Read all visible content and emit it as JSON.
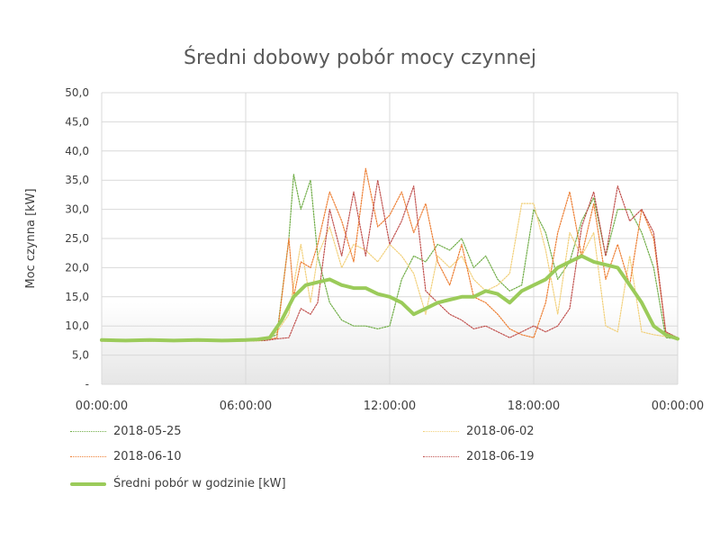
{
  "chart_data": {
    "type": "line",
    "title": "Średni dobowy pobór mocy czynnej",
    "ylabel": "Moc czynna [kW]",
    "ylim": [
      0,
      50
    ],
    "yticks": [
      "-",
      "5,0",
      "10,0",
      "15,0",
      "20,0",
      "25,0",
      "30,0",
      "35,0",
      "40,0",
      "45,0",
      "50,0"
    ],
    "xlim": [
      0,
      24
    ],
    "xticks": [
      "00:00:00",
      "06:00:00",
      "12:00:00",
      "18:00:00",
      "00:00:00"
    ],
    "grid": true,
    "legend_position": "bottom",
    "series": [
      {
        "name": "2018-05-25",
        "color": "#70AD47",
        "style": "dotted",
        "x": [
          0,
          2,
          4,
          6,
          6.8,
          7.3,
          7.8,
          8.0,
          8.3,
          8.7,
          9.0,
          9.5,
          10,
          10.5,
          11,
          11.5,
          12,
          12.5,
          13,
          13.5,
          14,
          14.5,
          15,
          15.5,
          16,
          16.5,
          17,
          17.5,
          18,
          18.5,
          19,
          19.5,
          20,
          20.5,
          21,
          21.5,
          22,
          22.5,
          23,
          23.5,
          24
        ],
        "y": [
          7.6,
          7.6,
          7.6,
          7.6,
          7.7,
          8.5,
          25,
          36,
          30,
          35,
          22,
          14,
          11,
          10,
          10,
          9.5,
          10,
          18,
          22,
          21,
          24,
          23,
          25,
          20,
          22,
          18,
          16,
          17,
          30,
          26,
          18,
          21,
          28,
          32,
          22,
          30,
          30,
          26,
          20,
          8,
          7.8
        ]
      },
      {
        "name": "2018-06-02",
        "color": "#F2D07A",
        "style": "dotted",
        "x": [
          0,
          2,
          4,
          6,
          6.8,
          7.3,
          7.8,
          8.0,
          8.3,
          8.7,
          9.0,
          9.5,
          10,
          10.5,
          11,
          11.5,
          12,
          12.5,
          13,
          13.5,
          14,
          14.5,
          15,
          15.5,
          16,
          16.5,
          17,
          17.5,
          18,
          18.5,
          19,
          19.5,
          20,
          20.5,
          21,
          21.5,
          22,
          22.5,
          23,
          23.5,
          24
        ],
        "y": [
          7.5,
          7.5,
          7.5,
          7.5,
          7.6,
          9,
          12,
          17,
          24,
          14,
          22,
          27,
          20,
          24,
          23,
          21,
          24,
          22,
          19,
          12,
          22,
          20,
          22,
          18,
          16,
          17,
          19,
          31,
          31,
          23,
          12,
          26,
          22,
          26,
          10,
          9,
          22,
          9,
          8.5,
          8.2,
          7.9
        ]
      },
      {
        "name": "2018-06-10",
        "color": "#ED7D31",
        "style": "dotted",
        "x": [
          0,
          2,
          4,
          6,
          6.8,
          7.3,
          7.8,
          8.0,
          8.3,
          8.7,
          9.0,
          9.5,
          10,
          10.5,
          11,
          11.5,
          12,
          12.5,
          13,
          13.5,
          14,
          14.5,
          15,
          15.5,
          16,
          16.5,
          17,
          17.5,
          18,
          18.5,
          19,
          19.5,
          20,
          20.5,
          21,
          21.5,
          22,
          22.5,
          23,
          23.5,
          24
        ],
        "y": [
          7.4,
          7.4,
          7.4,
          7.4,
          7.5,
          8,
          25,
          15,
          21,
          20,
          24,
          33,
          28,
          21,
          37,
          27,
          29,
          33,
          26,
          31,
          21,
          17,
          24,
          15,
          14,
          12,
          9.5,
          8.5,
          8,
          14,
          26,
          33,
          22,
          31,
          18,
          24,
          17,
          30,
          25,
          9,
          7.9
        ]
      },
      {
        "name": "2018-06-19",
        "color": "#C0504D",
        "style": "dotted",
        "x": [
          0,
          2,
          4,
          6,
          6.8,
          7.3,
          7.8,
          8.0,
          8.3,
          8.7,
          9.0,
          9.5,
          10,
          10.5,
          11,
          11.5,
          12,
          12.5,
          13,
          13.5,
          14,
          14.5,
          15,
          15.5,
          16,
          16.5,
          17,
          17.5,
          18,
          18.5,
          19,
          19.5,
          20,
          20.5,
          21,
          21.5,
          22,
          22.5,
          23,
          23.5,
          24
        ],
        "y": [
          7.5,
          7.5,
          7.5,
          7.5,
          7.5,
          7.8,
          8,
          10,
          13,
          12,
          14,
          30,
          22,
          33,
          22,
          35,
          24,
          28,
          34,
          16,
          14,
          12,
          11,
          9.5,
          10,
          9,
          8,
          9,
          10,
          9,
          10,
          13,
          27,
          33,
          22,
          34,
          28,
          30,
          26,
          9,
          8
        ]
      },
      {
        "name": "Średni pobór w godzinie [kW]",
        "color": "#9BCB5A",
        "style": "solid",
        "x": [
          0,
          1,
          2,
          3,
          4,
          5,
          6,
          6.5,
          7,
          7.5,
          8,
          8.5,
          9,
          9.5,
          10,
          10.5,
          11,
          11.5,
          12,
          12.5,
          13,
          13.5,
          14,
          14.5,
          15,
          15.5,
          16,
          16.5,
          17,
          17.5,
          18,
          18.5,
          19,
          19.5,
          20,
          20.5,
          21,
          21.5,
          22,
          22.5,
          23,
          23.5,
          24
        ],
        "y": [
          7.6,
          7.5,
          7.6,
          7.5,
          7.6,
          7.5,
          7.6,
          7.7,
          8,
          11,
          15,
          17,
          17.5,
          18,
          17,
          16.5,
          16.5,
          15.5,
          15,
          14,
          12,
          13,
          14,
          14.5,
          15,
          15,
          16,
          15.5,
          14,
          16,
          17,
          18,
          20,
          21,
          22,
          21,
          20.5,
          20,
          17,
          14,
          10,
          8.5,
          7.8
        ]
      }
    ]
  }
}
